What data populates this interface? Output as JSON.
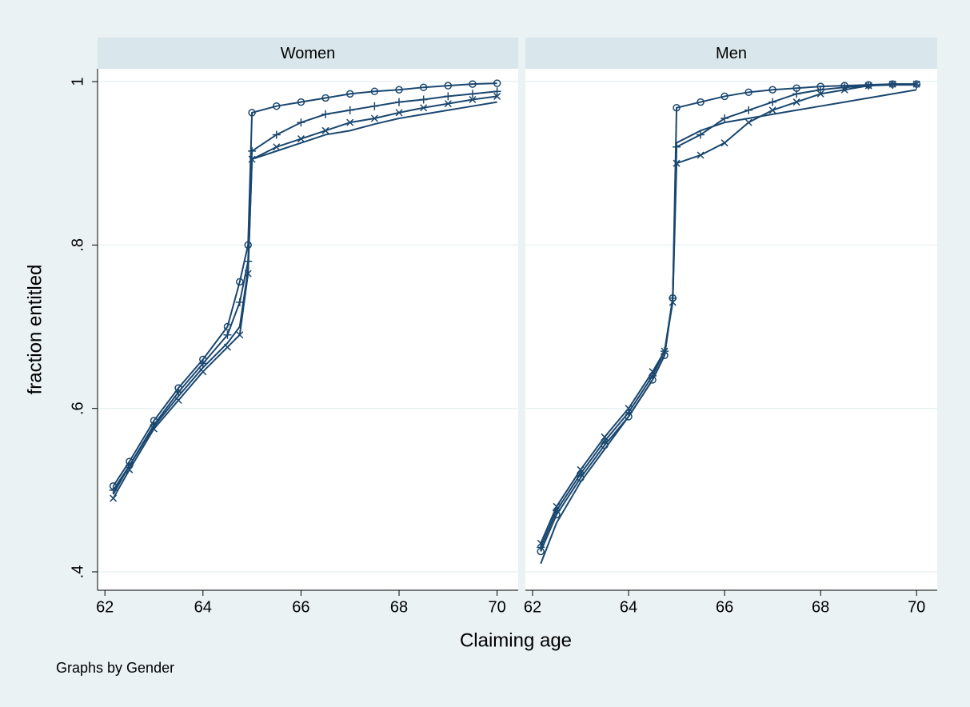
{
  "chart_data": [
    {
      "type": "line",
      "title": "Women",
      "x": [
        62.17,
        62.5,
        63,
        63.5,
        64,
        64.5,
        64.75,
        64.92,
        65,
        65.5,
        66,
        66.5,
        67,
        67.5,
        68,
        68.5,
        69,
        69.5,
        70
      ],
      "series": [
        {
          "color": "#1a476f",
          "marker": "circle",
          "values": [
            0.505,
            0.535,
            0.585,
            0.625,
            0.66,
            0.7,
            0.755,
            0.8,
            0.962,
            0.97,
            0.975,
            0.98,
            0.985,
            0.988,
            0.99,
            0.993,
            0.995,
            0.997,
            0.998
          ]
        },
        {
          "color": "#1a476f",
          "marker": "plus",
          "values": [
            0.5,
            0.53,
            0.58,
            0.62,
            0.655,
            0.69,
            0.73,
            0.78,
            0.915,
            0.935,
            0.95,
            0.96,
            0.965,
            0.97,
            0.975,
            0.978,
            0.982,
            0.985,
            0.988
          ]
        },
        {
          "color": "#1a476f",
          "marker": "x",
          "values": [
            0.49,
            0.525,
            0.575,
            0.61,
            0.645,
            0.675,
            0.69,
            0.765,
            0.905,
            0.92,
            0.93,
            0.94,
            0.95,
            0.955,
            0.962,
            0.968,
            0.973,
            0.978,
            0.982
          ]
        },
        {
          "color": "#1a476f",
          "marker": "none",
          "values": [
            0.495,
            0.53,
            0.578,
            0.615,
            0.65,
            0.68,
            0.7,
            0.77,
            0.905,
            0.915,
            0.925,
            0.935,
            0.94,
            0.948,
            0.955,
            0.96,
            0.965,
            0.97,
            0.975
          ]
        }
      ],
      "xlim": [
        61.85,
        70.43
      ],
      "xticks": [
        62,
        64,
        66,
        68,
        70
      ],
      "ylim": [
        0.3775,
        1.0157
      ],
      "yticks": [
        {
          "value": 0.4,
          "label": ".4"
        },
        {
          "value": 0.6,
          "label": ".6"
        },
        {
          "value": 0.8,
          "label": ".8"
        },
        1
      ],
      "grid": true
    },
    {
      "type": "line",
      "title": "Men",
      "x": [
        62.17,
        62.5,
        63,
        63.5,
        64,
        64.5,
        64.75,
        64.92,
        65,
        65.5,
        66,
        66.5,
        67,
        67.5,
        68,
        68.5,
        69,
        69.5,
        70
      ],
      "series": [
        {
          "color": "#1a476f",
          "marker": "circle",
          "values": [
            0.425,
            0.47,
            0.515,
            0.555,
            0.59,
            0.635,
            0.665,
            0.735,
            0.968,
            0.975,
            0.982,
            0.987,
            0.99,
            0.992,
            0.994,
            0.995,
            0.996,
            0.997,
            0.997
          ]
        },
        {
          "color": "#1a476f",
          "marker": "plus",
          "values": [
            0.43,
            0.475,
            0.52,
            0.56,
            0.595,
            0.64,
            0.67,
            0.735,
            0.92,
            0.935,
            0.955,
            0.965,
            0.975,
            0.985,
            0.99,
            0.993,
            0.995,
            0.996,
            0.996
          ]
        },
        {
          "color": "#1a476f",
          "marker": "x",
          "values": [
            0.435,
            0.48,
            0.525,
            0.565,
            0.6,
            0.645,
            0.67,
            0.73,
            0.9,
            0.91,
            0.925,
            0.95,
            0.965,
            0.975,
            0.985,
            0.99,
            0.995,
            0.997,
            0.997
          ]
        },
        {
          "color": "#1a476f",
          "marker": "none",
          "values": [
            0.41,
            0.46,
            0.51,
            0.55,
            0.59,
            0.635,
            0.665,
            0.735,
            0.925,
            0.94,
            0.95,
            0.955,
            0.96,
            0.965,
            0.97,
            0.975,
            0.98,
            0.985,
            0.99
          ]
        }
      ],
      "xlim": [
        61.85,
        70.43
      ],
      "xticks": [
        62,
        64,
        66,
        68,
        70
      ],
      "ylim": [
        0.3775,
        1.0157
      ],
      "grid": true
    }
  ],
  "x_label": "Claiming age",
  "y_label": "fraction entitled",
  "note": "Graphs by Gender"
}
